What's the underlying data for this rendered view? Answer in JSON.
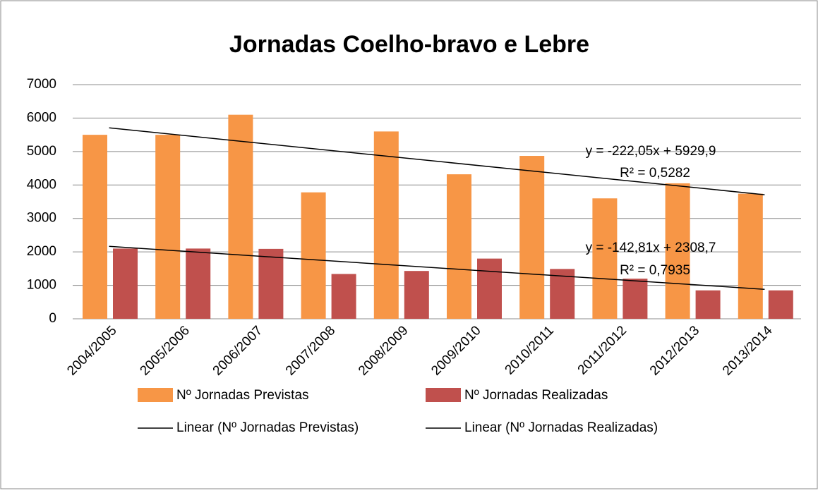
{
  "chart_data": {
    "type": "bar",
    "title": "Jornadas Coelho-bravo e Lebre",
    "categories": [
      "2004/2005",
      "2005/2006",
      "2006/2007",
      "2007/2008",
      "2008/2009",
      "2009/2010",
      "2010/2011",
      "2011/2012",
      "2012/2013",
      "2013/2014"
    ],
    "series": [
      {
        "name": "Nº Jornadas Previstas",
        "color": "#f79646",
        "values": [
          5500,
          5500,
          6100,
          3780,
          5600,
          4320,
          4870,
          3600,
          4050,
          3740
        ]
      },
      {
        "name": "Nº Jornadas Realizadas",
        "color": "#c0504d",
        "values": [
          2100,
          2100,
          2090,
          1340,
          1430,
          1800,
          1490,
          1200,
          850,
          850
        ]
      }
    ],
    "trendlines": [
      {
        "name": "Linear (Nº Jornadas Previstas)",
        "slope": -222.05,
        "intercept": 5929.9,
        "equation": "y = -222,05x + 5929,9",
        "r2": "R² = 0,5282",
        "color": "#000000"
      },
      {
        "name": "Linear (Nº Jornadas Realizadas)",
        "slope": -142.81,
        "intercept": 2308.7,
        "equation": "y = -142,81x + 2308,7",
        "r2": "R² = 0,7935",
        "color": "#000000"
      }
    ],
    "ylim": [
      0,
      7000
    ],
    "yticks": [
      0,
      1000,
      2000,
      3000,
      4000,
      5000,
      6000,
      7000
    ],
    "grid": true
  }
}
